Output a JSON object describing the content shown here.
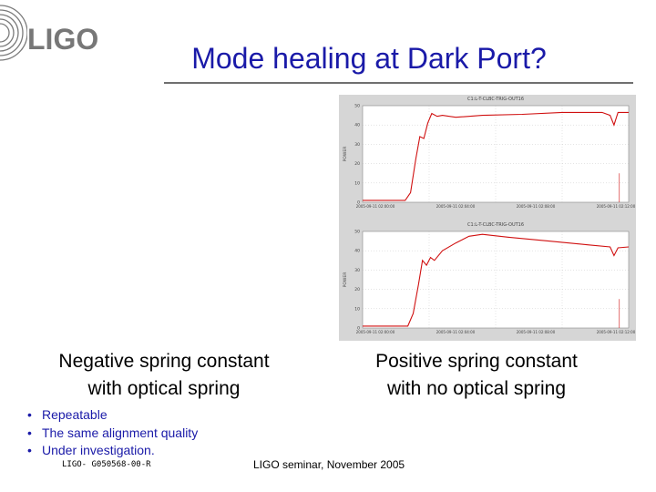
{
  "logo_text": "LIGO",
  "title": "Mode healing at Dark Port?",
  "plots": [
    {
      "heading": "C1:L-T-CLBC-TRIG-OUT16",
      "ylabel": "POWER",
      "yticks": [
        "50",
        "40",
        "30",
        "20",
        "10",
        "0"
      ],
      "xticks": [
        "2005-09-11 02:00:00",
        "2005-09-11 02:04:00",
        "2005-09-11 02:08:00",
        "2005-09-11 02:12:00"
      ]
    },
    {
      "heading": "C1:L-T-CLBC-TRIG-OUT16",
      "ylabel": "POWER",
      "yticks": [
        "50",
        "40",
        "30",
        "20",
        "10",
        "0"
      ],
      "xticks": [
        "2005-09-11 02:00:00",
        "2005-09-11 02:04:00",
        "2005-09-11 02:08:00",
        "2005-09-11 02:12:00"
      ]
    }
  ],
  "captions": {
    "negative": [
      "Negative spring constant",
      "with optical spring"
    ],
    "positive": [
      "Positive spring constant",
      "with no optical spring"
    ]
  },
  "bullets": [
    "Repeatable",
    "The same alignment quality",
    "Under investigation."
  ],
  "footer": {
    "doc_id": "LIGO- G050568-00-R",
    "center": "LIGO seminar, November 2005"
  },
  "colors": {
    "title": "#1a1aa8",
    "trace": "#d01010",
    "bullets": "#1a1aa8"
  }
}
